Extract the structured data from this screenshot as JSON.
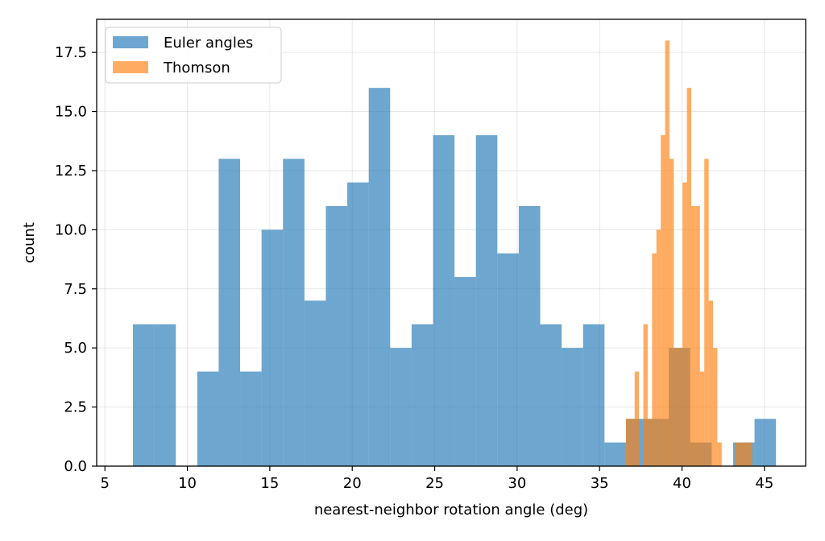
{
  "chart_data": {
    "type": "bar",
    "title": "",
    "xlabel": "nearest-neighbor rotation angle (deg)",
    "ylabel": "count",
    "xlim": [
      4.5,
      47.5
    ],
    "ylim": [
      0,
      18.9
    ],
    "x_ticks": [
      5,
      10,
      15,
      20,
      25,
      30,
      35,
      40,
      45
    ],
    "y_ticks": [
      0.0,
      2.5,
      5.0,
      7.5,
      10.0,
      12.5,
      15.0,
      17.5
    ],
    "x_tick_labels": [
      "5",
      "10",
      "15",
      "20",
      "25",
      "30",
      "35",
      "40",
      "45"
    ],
    "y_tick_labels": [
      "0.0",
      "2.5",
      "5.0",
      "7.5",
      "10.0",
      "12.5",
      "15.0",
      "17.5"
    ],
    "grid": true,
    "legend": {
      "placement": "top-left",
      "entries": [
        "Euler angles",
        "Thomson"
      ]
    },
    "series": [
      {
        "name": "Euler angles",
        "color": "#1f77b4",
        "alpha": 0.65,
        "bin_start": 6.7,
        "bin_width": 1.3,
        "counts": [
          6,
          6,
          0,
          4,
          13,
          4,
          10,
          13,
          7,
          11,
          12,
          16,
          5,
          6,
          14,
          8,
          14,
          9,
          11,
          6,
          5,
          6,
          1,
          2,
          2,
          5,
          1,
          0,
          1,
          2
        ]
      },
      {
        "name": "Thomson",
        "color": "#ff7f0e",
        "alpha": 0.65,
        "bin_start": 36.6,
        "bin_width": 0.264,
        "counts": [
          2,
          2,
          4,
          0,
          6,
          2,
          9,
          10,
          14,
          18,
          13,
          5,
          5,
          12,
          16,
          11,
          11,
          4,
          13,
          7,
          5,
          1,
          0,
          0,
          0,
          1,
          1,
          1,
          1,
          0
        ]
      }
    ]
  }
}
